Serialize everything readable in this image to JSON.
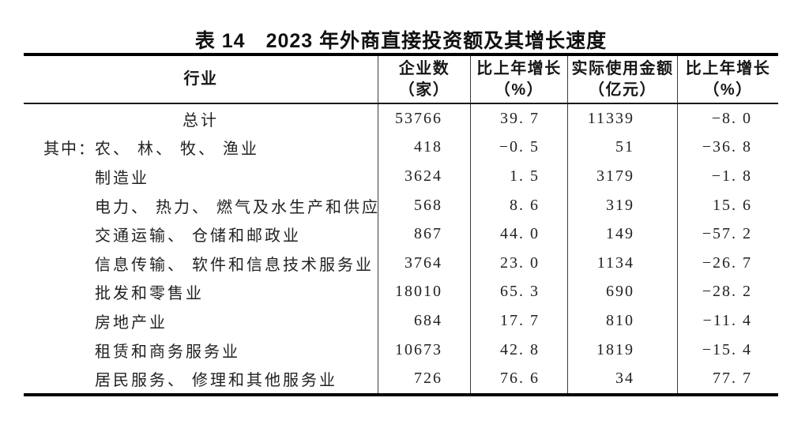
{
  "title": "表 14　2023 年外商直接投资额及其增长速度",
  "table": {
    "columns": [
      {
        "line1": "行业",
        "line2": ""
      },
      {
        "line1": "企业数",
        "line2": "（家）"
      },
      {
        "line1": "比上年增长",
        "line2": "（%）"
      },
      {
        "line1": "实际使用金额",
        "line2": "（亿元）"
      },
      {
        "line1": "比上年增长",
        "line2": "（%）"
      }
    ],
    "rows": [
      {
        "prefix": "",
        "industry": "总计",
        "enterprises": "53766",
        "growth1": "39. 7",
        "amount": "11339",
        "growth2": "−8. 0"
      },
      {
        "prefix": "其中：",
        "industry": "农、 林、 牧、 渔业",
        "enterprises": "418",
        "growth1": "−0. 5",
        "amount": "51",
        "growth2": "−36. 8"
      },
      {
        "prefix": "",
        "industry": "制造业",
        "enterprises": "3624",
        "growth1": "1. 5",
        "amount": "3179",
        "growth2": "−1. 8"
      },
      {
        "prefix": "",
        "industry": "电力、 热力、 燃气及水生产和供应业",
        "enterprises": "568",
        "growth1": "8. 6",
        "amount": "319",
        "growth2": "15. 6"
      },
      {
        "prefix": "",
        "industry": "交通运输、 仓储和邮政业",
        "enterprises": "867",
        "growth1": "44. 0",
        "amount": "149",
        "growth2": "−57. 2"
      },
      {
        "prefix": "",
        "industry": "信息传输、 软件和信息技术服务业",
        "enterprises": "3764",
        "growth1": "23. 0",
        "amount": "1134",
        "growth2": "−26. 7"
      },
      {
        "prefix": "",
        "industry": "批发和零售业",
        "enterprises": "18010",
        "growth1": "65. 3",
        "amount": "690",
        "growth2": "−28. 2"
      },
      {
        "prefix": "",
        "industry": "房地产业",
        "enterprises": "684",
        "growth1": "17. 7",
        "amount": "810",
        "growth2": "−11. 4"
      },
      {
        "prefix": "",
        "industry": "租赁和商务服务业",
        "enterprises": "10673",
        "growth1": "42. 8",
        "amount": "1819",
        "growth2": "−15. 4"
      },
      {
        "prefix": "",
        "industry": "居民服务、 修理和其他服务业",
        "enterprises": "726",
        "growth1": "76. 6",
        "amount": "34",
        "growth2": "77. 7"
      }
    ]
  }
}
